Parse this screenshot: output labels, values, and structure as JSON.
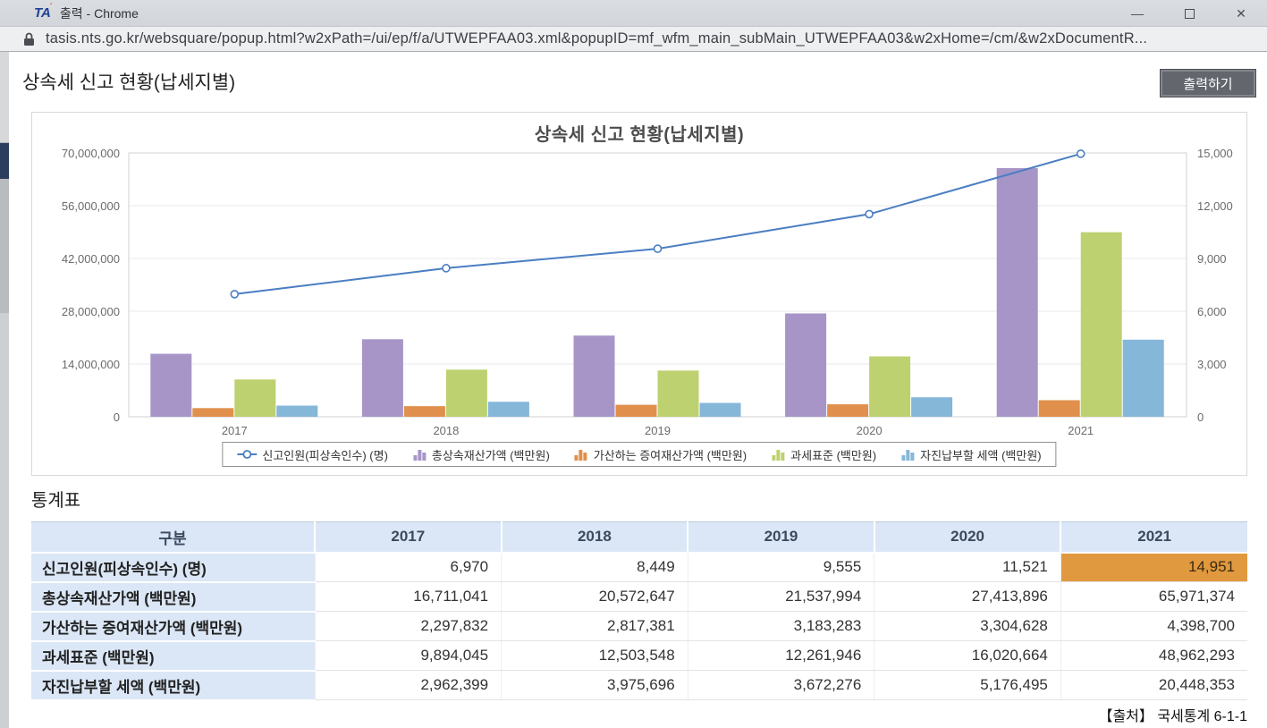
{
  "window": {
    "favicon_text": "TA",
    "title": "출력 - Chrome",
    "controls": {
      "minimize": "—",
      "close": "✕"
    }
  },
  "urlbar": {
    "url": "tasis.nts.go.kr/websquare/popup.html?w2xPath=/ui/ep/f/a/UTWEPFAA03.xml&popupID=mf_wfm_main_subMain_UTWEPFAA03&w2xHome=/cm/&w2xDocumentR..."
  },
  "page": {
    "title": "상속세 신고 현황(납세지별)",
    "print_button": "출력하기",
    "table_section_title": "통계표",
    "source_note": "【출처】 국세통계 6-1-1"
  },
  "chart_data": {
    "type": "combo-bar-line",
    "title": "상속세 신고 현황(납세지별)",
    "categories": [
      "2017",
      "2018",
      "2019",
      "2020",
      "2021"
    ],
    "line_series": {
      "name": "신고인원(피상속인수) (명)",
      "axis": "right",
      "color": "#4a7ec2",
      "values": [
        6970,
        8449,
        9555,
        11521,
        14951
      ]
    },
    "bar_series": [
      {
        "name": "총상속재산가액 (백만원)",
        "color": "#a795c8",
        "values": [
          16711041,
          20572647,
          21537994,
          27413896,
          65971374
        ]
      },
      {
        "name": "가산하는 증여재산가액 (백만원)",
        "color": "#e0904c",
        "values": [
          2297832,
          2817381,
          3183283,
          3304628,
          4398700
        ]
      },
      {
        "name": "과세표준 (백만원)",
        "color": "#bdd171",
        "values": [
          9894045,
          12503548,
          12261946,
          16020664,
          48962293
        ]
      },
      {
        "name": "자진납부할 세액 (백만원)",
        "color": "#85b7d9",
        "values": [
          2962399,
          3975696,
          3672276,
          5176495,
          20448353
        ]
      }
    ],
    "left_axis": {
      "min": 0,
      "max": 70000000,
      "step": 14000000
    },
    "right_axis": {
      "min": 0,
      "max": 15000,
      "step": 3000
    },
    "grid": true,
    "legend_position": "bottom"
  },
  "table": {
    "headers": [
      "구분",
      "2017",
      "2018",
      "2019",
      "2020",
      "2021"
    ],
    "rows": [
      {
        "label": "신고인원(피상속인수) (명)",
        "values": [
          "6,970",
          "8,449",
          "9,555",
          "11,521",
          "14,951"
        ]
      },
      {
        "label": "총상속재산가액 (백만원)",
        "values": [
          "16,711,041",
          "20,572,647",
          "21,537,994",
          "27,413,896",
          "65,971,374"
        ]
      },
      {
        "label": "가산하는 증여재산가액 (백만원)",
        "values": [
          "2,297,832",
          "2,817,381",
          "3,183,283",
          "3,304,628",
          "4,398,700"
        ]
      },
      {
        "label": "과세표준 (백만원)",
        "values": [
          "9,894,045",
          "12,503,548",
          "12,261,946",
          "16,020,664",
          "48,962,293"
        ]
      },
      {
        "label": "자진납부할 세액 (백만원)",
        "values": [
          "2,962,399",
          "3,975,696",
          "3,672,276",
          "5,176,495",
          "20,448,353"
        ]
      }
    ],
    "highlight": {
      "row": 0,
      "col": 4,
      "bg": "#e0993f",
      "fg": "#3a2a10"
    }
  }
}
